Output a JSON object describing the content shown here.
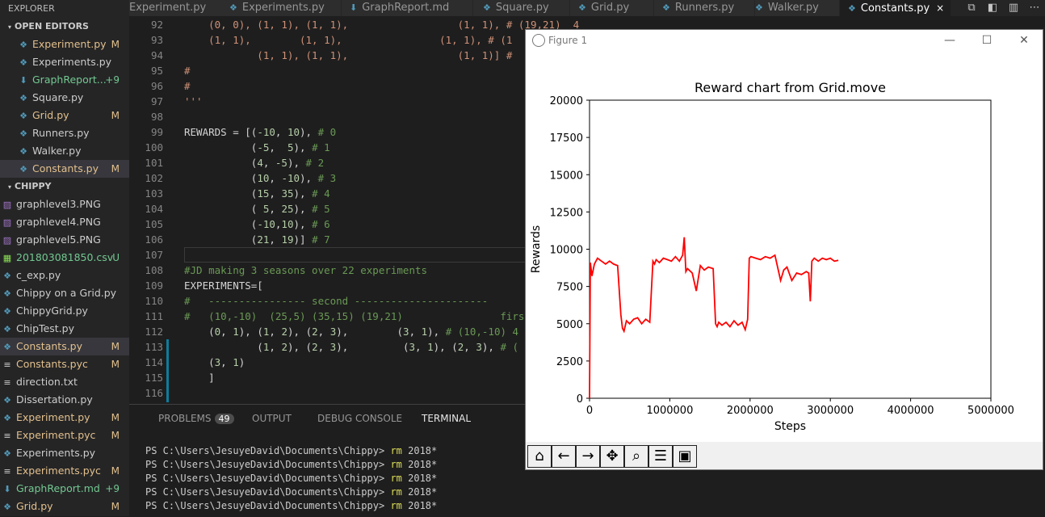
{
  "explorer": {
    "title": "EXPLORER",
    "open_editors": {
      "label": "OPEN EDITORS",
      "items": [
        {
          "name": "Experiment.py",
          "status": "M"
        },
        {
          "name": "Experiments.py",
          "status": ""
        },
        {
          "name": "GraphReport...",
          "status": "+9"
        },
        {
          "name": "Square.py",
          "status": ""
        },
        {
          "name": "Grid.py",
          "status": "M"
        },
        {
          "name": "Runners.py",
          "status": ""
        },
        {
          "name": "Walker.py",
          "status": ""
        },
        {
          "name": "Constants.py",
          "status": "M"
        }
      ]
    },
    "project": {
      "label": "CHIPPY",
      "items": [
        {
          "name": "graphlevel3.PNG",
          "status": ""
        },
        {
          "name": "graphlevel4.PNG",
          "status": ""
        },
        {
          "name": "graphlevel5.PNG",
          "status": ""
        },
        {
          "name": "201803081850.csv",
          "status": "U"
        },
        {
          "name": "c_exp.py",
          "status": ""
        },
        {
          "name": "Chippy on a Grid.py",
          "status": ""
        },
        {
          "name": "ChippyGrid.py",
          "status": ""
        },
        {
          "name": "ChipTest.py",
          "status": ""
        },
        {
          "name": "Constants.py",
          "status": "M"
        },
        {
          "name": "Constants.pyc",
          "status": "M"
        },
        {
          "name": "direction.txt",
          "status": ""
        },
        {
          "name": "Dissertation.py",
          "status": ""
        },
        {
          "name": "Experiment.py",
          "status": "M"
        },
        {
          "name": "Experiment.pyc",
          "status": "M"
        },
        {
          "name": "Experiments.py",
          "status": ""
        },
        {
          "name": "Experiments.pyc",
          "status": "M"
        },
        {
          "name": "GraphReport.md",
          "status": "+9"
        },
        {
          "name": "Grid.py",
          "status": "M"
        }
      ]
    }
  },
  "tabs": [
    {
      "label": "Experiment.py"
    },
    {
      "label": "Experiments.py"
    },
    {
      "label": "GraphReport.md"
    },
    {
      "label": "Square.py"
    },
    {
      "label": "Grid.py"
    },
    {
      "label": "Runners.py"
    },
    {
      "label": "Walker.py"
    },
    {
      "label": "Constants.py"
    }
  ],
  "tab_close": "×",
  "editor": {
    "lines": [
      {
        "n": "92",
        "text": "    (0, 0), (1, 1), (1, 1),                  (1, 1), # (19,21)  4"
      },
      {
        "n": "93",
        "text": "    (1, 1),        (1, 1),                (1, 1), # (1"
      },
      {
        "n": "94",
        "text": "            (1, 1), (1, 1),                  (1, 1)] #"
      },
      {
        "n": "95",
        "text": "#"
      },
      {
        "n": "96",
        "text": "#"
      },
      {
        "n": "97",
        "text": "'''"
      },
      {
        "n": "98",
        "text": ""
      },
      {
        "n": "99",
        "text": "REWARDS = [(-10, 10), # 0"
      },
      {
        "n": "100",
        "text": "           (-5,  5), # 1"
      },
      {
        "n": "101",
        "text": "           (4, -5), # 2"
      },
      {
        "n": "102",
        "text": "           (10, -10), # 3"
      },
      {
        "n": "103",
        "text": "           (15, 35), # 4"
      },
      {
        "n": "104",
        "text": "           ( 5, 25), # 5"
      },
      {
        "n": "105",
        "text": "           (-10,10), # 6"
      },
      {
        "n": "106",
        "text": "           (21, 19)] # 7"
      },
      {
        "n": "107",
        "text": ""
      },
      {
        "n": "108",
        "text": "#JD making 3 seasons over 22 experiments"
      },
      {
        "n": "109",
        "text": "EXPERIMENTS=["
      },
      {
        "n": "110",
        "text": "#   ---------------- second ----------------------"
      },
      {
        "n": "111",
        "text": "#   (10,-10)  (25,5) (35,15) (19,21)                firs"
      },
      {
        "n": "112",
        "text": "    (0, 1), (1, 2), (2, 3),        (3, 1), # (10,-10) 4"
      },
      {
        "n": "113",
        "text": "            (1, 2), (2, 3),         (3, 1), (2, 3), # ("
      },
      {
        "n": "114",
        "text": "    (3, 1)"
      },
      {
        "n": "115",
        "text": "    ]"
      },
      {
        "n": "116",
        "text": ""
      }
    ]
  },
  "panel": {
    "tabs": {
      "problems": "PROBLEMS",
      "problems_count": "49",
      "output": "OUTPUT",
      "debug": "DEBUG CONSOLE",
      "terminal": "TERMINAL"
    },
    "terminal_lines": [
      {
        "prompt": "PS C:\\Users\\JesuyeDavid\\Documents\\Chippy> ",
        "cmd": "rm",
        "arg": " 2018*"
      },
      {
        "prompt": "PS C:\\Users\\JesuyeDavid\\Documents\\Chippy> ",
        "cmd": "rm",
        "arg": " 2018*"
      },
      {
        "prompt": "PS C:\\Users\\JesuyeDavid\\Documents\\Chippy> ",
        "cmd": "rm",
        "arg": " 2018*"
      },
      {
        "prompt": "PS C:\\Users\\JesuyeDavid\\Documents\\Chippy> ",
        "cmd": "rm",
        "arg": " 2018*"
      },
      {
        "prompt": "PS C:\\Users\\JesuyeDavid\\Documents\\Chippy> ",
        "cmd": "rm",
        "arg": " 2018*"
      }
    ]
  },
  "figure": {
    "window_title": "Figure 1",
    "toolbar_icons": [
      "home-icon",
      "back-arrow-icon",
      "forward-arrow-icon",
      "pan-icon",
      "zoom-icon",
      "configure-subplots-icon",
      "save-icon"
    ]
  },
  "chart_data": {
    "type": "line",
    "title": "Reward chart from Grid.move",
    "xlabel": "Steps",
    "ylabel": "Rewards",
    "xlim": [
      0,
      5000000
    ],
    "ylim": [
      0,
      20000
    ],
    "xticks": [
      0,
      1000000,
      2000000,
      3000000,
      4000000,
      5000000
    ],
    "yticks": [
      0,
      2500,
      5000,
      7500,
      10000,
      12500,
      15000,
      17500,
      20000
    ],
    "series": [
      {
        "color": "#ff0000",
        "x": [
          0,
          10000,
          30000,
          60000,
          100000,
          150000,
          200000,
          250000,
          300000,
          350000,
          390000,
          410000,
          430000,
          460000,
          500000,
          550000,
          600000,
          650000,
          700000,
          750000,
          790000,
          810000,
          830000,
          870000,
          920000,
          970000,
          1020000,
          1070000,
          1120000,
          1160000,
          1180000,
          1200000,
          1220000,
          1280000,
          1330000,
          1380000,
          1430000,
          1480000,
          1540000,
          1570000,
          1590000,
          1610000,
          1650000,
          1700000,
          1750000,
          1800000,
          1850000,
          1900000,
          1940000,
          1970000,
          1990000,
          2010000,
          2070000,
          2130000,
          2190000,
          2250000,
          2310000,
          2380000,
          2420000,
          2460000,
          2520000,
          2580000,
          2640000,
          2700000,
          2730000,
          2750000,
          2770000,
          2800000,
          2850000,
          2900000,
          2950000,
          3000000,
          3050000,
          3100000
        ],
        "y": [
          0,
          9100,
          8200,
          9000,
          9400,
          9200,
          9000,
          9200,
          9000,
          8900,
          5600,
          4700,
          4500,
          5200,
          5000,
          5300,
          5400,
          5000,
          5300,
          5100,
          9200,
          9000,
          9300,
          9100,
          9400,
          9300,
          9200,
          9500,
          9200,
          9600,
          10800,
          8500,
          8700,
          8400,
          7200,
          8900,
          8600,
          8800,
          8700,
          5000,
          4800,
          5100,
          4900,
          5100,
          4800,
          5200,
          4900,
          5100,
          4600,
          5300,
          9400,
          9500,
          9400,
          9300,
          9500,
          9400,
          9600,
          7900,
          8600,
          8800,
          7900,
          8400,
          8300,
          8500,
          8400,
          6500,
          9200,
          9400,
          9200,
          9400,
          9300,
          9400,
          9200,
          9250
        ]
      }
    ]
  }
}
